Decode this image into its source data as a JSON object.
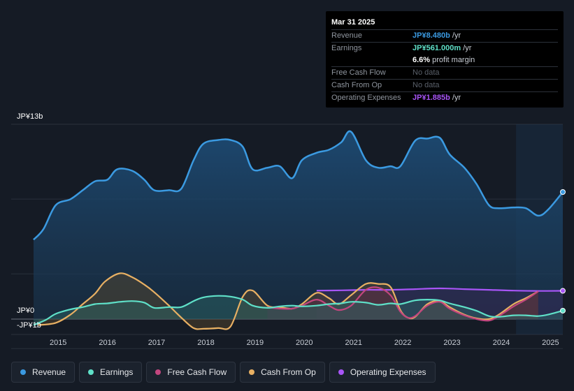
{
  "tooltip": {
    "date": "Mar 31 2025",
    "revenue": {
      "label": "Revenue",
      "value": "JP¥8.480b",
      "unit": "/yr",
      "color": "#3b9ae1"
    },
    "earnings": {
      "label": "Earnings",
      "value": "JP¥561.000m",
      "unit": "/yr",
      "color": "#5fe0c8"
    },
    "margin": {
      "value": "6.6%",
      "text": "profit margin"
    },
    "fcf": {
      "label": "Free Cash Flow",
      "value": "No data"
    },
    "cfo": {
      "label": "Cash From Op",
      "value": "No data"
    },
    "opex": {
      "label": "Operating Expenses",
      "value": "JP¥1.885b",
      "unit": "/yr",
      "color": "#a855f7"
    }
  },
  "legend": [
    {
      "label": "Revenue",
      "color": "#3b9ae1"
    },
    {
      "label": "Earnings",
      "color": "#5fe0c8"
    },
    {
      "label": "Free Cash Flow",
      "color": "#c2467e"
    },
    {
      "label": "Cash From Op",
      "color": "#e8b063"
    },
    {
      "label": "Operating Expenses",
      "color": "#a855f7"
    }
  ],
  "chart_data": {
    "type": "area",
    "unit": "JP¥ billions",
    "y_labels": [
      "JP¥13b",
      "JP¥0",
      "-JP¥1b"
    ],
    "ylim": [
      -1,
      13
    ],
    "xlim": [
      2014.5,
      2025.25
    ],
    "x_ticks": [
      "2015",
      "2016",
      "2017",
      "2018",
      "2019",
      "2020",
      "2021",
      "2022",
      "2023",
      "2024",
      "2025"
    ],
    "x_tick_values": [
      2015,
      2016,
      2017,
      2018,
      2019,
      2020,
      2021,
      2022,
      2023,
      2024,
      2025
    ],
    "series": [
      {
        "name": "Revenue",
        "color": "#3b9ae1",
        "points": [
          [
            2014.5,
            5.3
          ],
          [
            2014.7,
            6.0
          ],
          [
            2014.95,
            7.6
          ],
          [
            2015.25,
            8.0
          ],
          [
            2015.5,
            8.6
          ],
          [
            2015.75,
            9.2
          ],
          [
            2016.0,
            9.3
          ],
          [
            2016.2,
            10.0
          ],
          [
            2016.5,
            9.9
          ],
          [
            2016.75,
            9.3
          ],
          [
            2016.95,
            8.6
          ],
          [
            2017.25,
            8.6
          ],
          [
            2017.5,
            8.7
          ],
          [
            2017.75,
            10.6
          ],
          [
            2017.95,
            11.7
          ],
          [
            2018.25,
            11.95
          ],
          [
            2018.5,
            11.95
          ],
          [
            2018.75,
            11.5
          ],
          [
            2018.95,
            10.0
          ],
          [
            2019.25,
            10.1
          ],
          [
            2019.5,
            10.2
          ],
          [
            2019.75,
            9.4
          ],
          [
            2019.95,
            10.6
          ],
          [
            2020.25,
            11.1
          ],
          [
            2020.5,
            11.3
          ],
          [
            2020.75,
            11.8
          ],
          [
            2020.95,
            12.5
          ],
          [
            2021.25,
            10.6
          ],
          [
            2021.5,
            10.1
          ],
          [
            2021.75,
            10.2
          ],
          [
            2021.95,
            10.2
          ],
          [
            2022.25,
            11.9
          ],
          [
            2022.5,
            12.05
          ],
          [
            2022.75,
            12.1
          ],
          [
            2022.95,
            11.0
          ],
          [
            2023.25,
            10.1
          ],
          [
            2023.5,
            9.0
          ],
          [
            2023.75,
            7.6
          ],
          [
            2023.95,
            7.4
          ],
          [
            2024.25,
            7.45
          ],
          [
            2024.5,
            7.4
          ],
          [
            2024.75,
            6.9
          ],
          [
            2024.95,
            7.3
          ],
          [
            2025.25,
            8.48
          ]
        ]
      },
      {
        "name": "Earnings",
        "color": "#5fe0c8",
        "points": [
          [
            2014.5,
            -0.4
          ],
          [
            2014.75,
            -0.05
          ],
          [
            2014.95,
            0.35
          ],
          [
            2015.25,
            0.65
          ],
          [
            2015.5,
            0.8
          ],
          [
            2015.75,
            1.0
          ],
          [
            2016.0,
            1.05
          ],
          [
            2016.25,
            1.15
          ],
          [
            2016.5,
            1.2
          ],
          [
            2016.75,
            1.1
          ],
          [
            2016.95,
            0.75
          ],
          [
            2017.25,
            0.8
          ],
          [
            2017.5,
            0.8
          ],
          [
            2017.75,
            1.2
          ],
          [
            2017.95,
            1.45
          ],
          [
            2018.25,
            1.55
          ],
          [
            2018.5,
            1.5
          ],
          [
            2018.75,
            1.3
          ],
          [
            2018.95,
            0.9
          ],
          [
            2019.25,
            0.75
          ],
          [
            2019.5,
            0.85
          ],
          [
            2019.75,
            0.9
          ],
          [
            2019.95,
            0.85
          ],
          [
            2020.25,
            0.9
          ],
          [
            2020.5,
            1.0
          ],
          [
            2020.75,
            1.05
          ],
          [
            2020.95,
            1.15
          ],
          [
            2021.25,
            1.1
          ],
          [
            2021.5,
            0.95
          ],
          [
            2021.75,
            1.05
          ],
          [
            2021.95,
            1.0
          ],
          [
            2022.25,
            1.25
          ],
          [
            2022.5,
            1.3
          ],
          [
            2022.75,
            1.25
          ],
          [
            2022.95,
            1.05
          ],
          [
            2023.25,
            0.8
          ],
          [
            2023.5,
            0.55
          ],
          [
            2023.75,
            0.2
          ],
          [
            2023.95,
            0.15
          ],
          [
            2024.25,
            0.25
          ],
          [
            2024.5,
            0.25
          ],
          [
            2024.75,
            0.2
          ],
          [
            2024.95,
            0.3
          ],
          [
            2025.25,
            0.561
          ]
        ]
      },
      {
        "name": "Free Cash Flow",
        "color": "#c2467e",
        "points": [
          [
            2019.25,
            0.8
          ],
          [
            2019.5,
            0.7
          ],
          [
            2019.75,
            0.7
          ],
          [
            2019.95,
            0.9
          ],
          [
            2020.25,
            1.3
          ],
          [
            2020.5,
            0.9
          ],
          [
            2020.7,
            0.6
          ],
          [
            2020.95,
            0.9
          ],
          [
            2021.25,
            1.95
          ],
          [
            2021.5,
            2.1
          ],
          [
            2021.75,
            1.6
          ],
          [
            2021.95,
            0.5
          ],
          [
            2022.1,
            0.1
          ],
          [
            2022.25,
            0.2
          ],
          [
            2022.5,
            0.9
          ],
          [
            2022.75,
            1.15
          ],
          [
            2022.95,
            0.7
          ],
          [
            2023.25,
            0.25
          ],
          [
            2023.5,
            0.0
          ],
          [
            2023.75,
            -0.1
          ],
          [
            2023.95,
            0.2
          ],
          [
            2024.25,
            0.85
          ],
          [
            2024.5,
            1.3
          ],
          [
            2024.75,
            1.85
          ]
        ]
      },
      {
        "name": "Cash From Op",
        "color": "#e8b063",
        "points": [
          [
            2014.6,
            -0.4
          ],
          [
            2014.95,
            -0.25
          ],
          [
            2015.25,
            0.3
          ],
          [
            2015.5,
            1.0
          ],
          [
            2015.75,
            1.7
          ],
          [
            2015.95,
            2.5
          ],
          [
            2016.25,
            3.05
          ],
          [
            2016.5,
            2.8
          ],
          [
            2016.75,
            2.3
          ],
          [
            2016.95,
            1.8
          ],
          [
            2017.25,
            0.9
          ],
          [
            2017.5,
            0.1
          ],
          [
            2017.75,
            -0.6
          ],
          [
            2017.95,
            -0.65
          ],
          [
            2018.25,
            -0.6
          ],
          [
            2018.5,
            -0.5
          ],
          [
            2018.75,
            1.5
          ],
          [
            2018.95,
            1.9
          ],
          [
            2019.25,
            0.9
          ],
          [
            2019.5,
            0.8
          ],
          [
            2019.75,
            0.7
          ],
          [
            2019.95,
            1.0
          ],
          [
            2020.25,
            1.75
          ],
          [
            2020.5,
            1.4
          ],
          [
            2020.7,
            1.0
          ],
          [
            2020.95,
            1.6
          ],
          [
            2021.25,
            2.35
          ],
          [
            2021.5,
            2.35
          ],
          [
            2021.75,
            2.15
          ],
          [
            2021.95,
            0.6
          ],
          [
            2022.1,
            0.1
          ],
          [
            2022.25,
            0.15
          ],
          [
            2022.5,
            1.0
          ],
          [
            2022.75,
            1.2
          ],
          [
            2022.95,
            0.8
          ],
          [
            2023.25,
            0.3
          ],
          [
            2023.5,
            0.05
          ],
          [
            2023.75,
            0.0
          ],
          [
            2023.95,
            0.3
          ],
          [
            2024.25,
            1.0
          ],
          [
            2024.5,
            1.4
          ],
          [
            2024.75,
            1.85
          ]
        ]
      },
      {
        "name": "Operating Expenses",
        "color": "#a855f7",
        "points": [
          [
            2020.25,
            1.9
          ],
          [
            2020.75,
            1.92
          ],
          [
            2021.25,
            1.95
          ],
          [
            2021.75,
            1.95
          ],
          [
            2022.25,
            2.0
          ],
          [
            2022.75,
            2.05
          ],
          [
            2023.25,
            2.0
          ],
          [
            2023.75,
            1.95
          ],
          [
            2024.25,
            1.9
          ],
          [
            2024.75,
            1.88
          ],
          [
            2025.25,
            1.885
          ]
        ]
      }
    ]
  }
}
